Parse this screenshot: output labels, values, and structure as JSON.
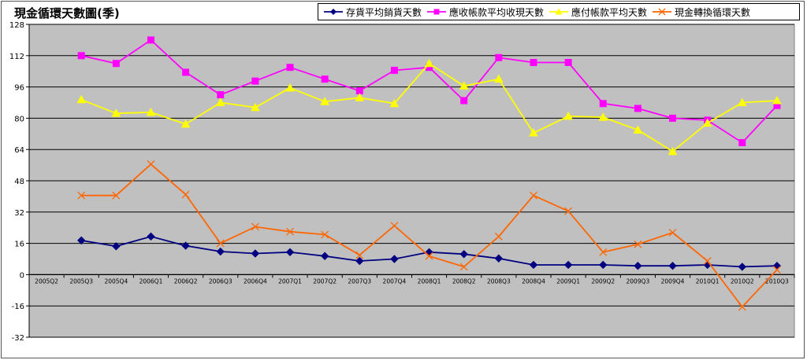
{
  "chart_data": {
    "type": "line",
    "title": "現金循環天數圖(季)",
    "categories": [
      "2005Q2",
      "2005Q3",
      "2005Q4",
      "2006Q1",
      "2006Q2",
      "2006Q3",
      "2006Q4",
      "2007Q1",
      "2007Q2",
      "2007Q3",
      "2007Q4",
      "2008Q1",
      "2008Q2",
      "2008Q3",
      "2008Q4",
      "2009Q1",
      "2009Q2",
      "2009Q3",
      "2009Q4",
      "2010Q1",
      "2010Q2",
      "2010Q3"
    ],
    "yticks": [
      -32,
      -16,
      0,
      16,
      32,
      48,
      64,
      80,
      96,
      112,
      128
    ],
    "ylim": [
      -32,
      128
    ],
    "grid": true,
    "legend_position": "top-right",
    "series": [
      {
        "name": "存貨平均銷貨天數",
        "color": "#000080",
        "marker": "diamond",
        "values": [
          null,
          17.5,
          14.5,
          19.5,
          14.8,
          11.8,
          10.8,
          11.5,
          9.5,
          7,
          8,
          11.5,
          10.5,
          8.3,
          5,
          5,
          5,
          4.5,
          4.5,
          5,
          4,
          4.5
        ]
      },
      {
        "name": "應收帳款平均收現天數",
        "color": "#ff00ff",
        "marker": "square",
        "values": [
          null,
          112,
          108,
          120,
          103.5,
          92,
          99,
          106,
          100,
          94,
          104.5,
          106,
          89,
          111,
          108.5,
          108.5,
          87.5,
          85,
          80,
          79,
          67.5,
          86.5
        ]
      },
      {
        "name": "應付帳款平均天數",
        "color": "#ffff00",
        "marker": "triangle",
        "values": [
          null,
          89.5,
          82.5,
          83,
          77,
          88,
          85.5,
          95.5,
          88.5,
          90.5,
          87.5,
          108,
          96.5,
          100,
          72.5,
          81,
          80.5,
          74,
          63,
          77.5,
          88,
          89
        ]
      },
      {
        "name": "現金轉換循環天數",
        "color": "#ff6600",
        "marker": "x",
        "values": [
          null,
          40.5,
          40.5,
          56.5,
          41,
          16,
          24.5,
          22,
          20.5,
          10,
          25,
          9.5,
          4,
          19.5,
          40.5,
          32.5,
          11.5,
          15.5,
          21.5,
          7,
          -16.5,
          2.5
        ]
      }
    ]
  }
}
